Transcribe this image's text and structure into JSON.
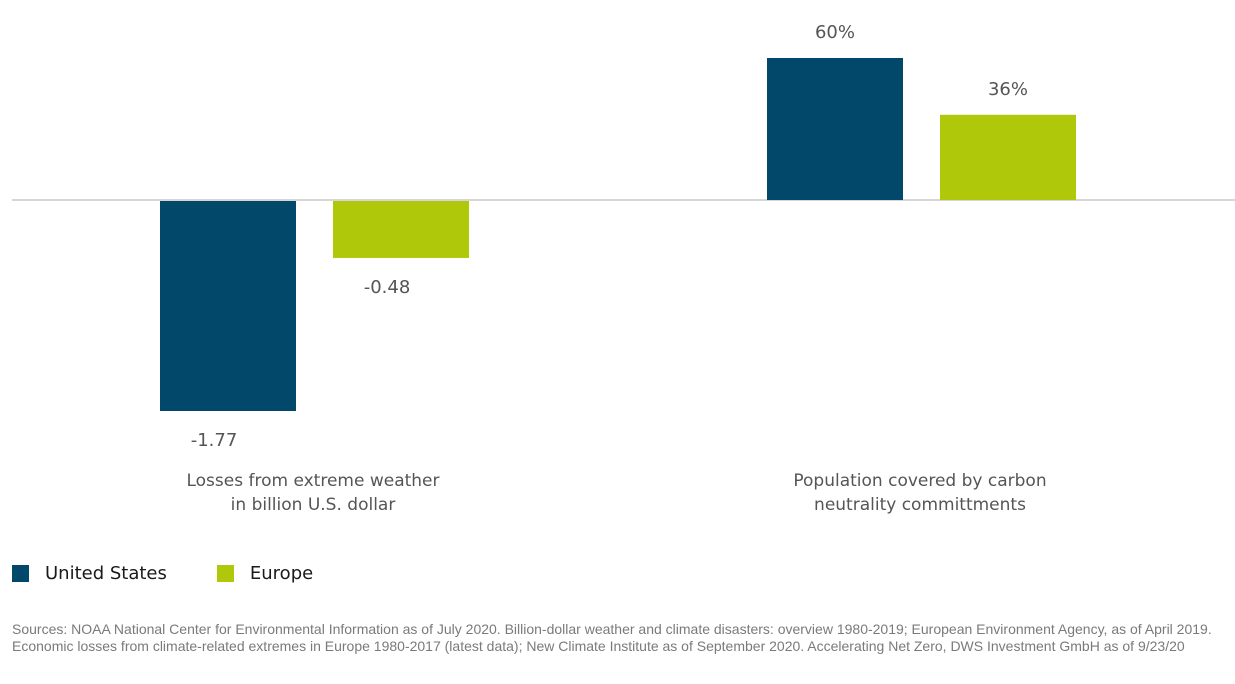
{
  "chart_data": {
    "type": "bar",
    "categories": [
      [
        "Losses from extreme weather",
        "in billion U.S. dollar"
      ],
      [
        "Population covered by carbon",
        "neutrality committments"
      ]
    ],
    "series": [
      {
        "name": "United States",
        "color": "#01486b",
        "values": [
          -1.77,
          0.6
        ],
        "labels": [
          "-1.77",
          "60%"
        ]
      },
      {
        "name": "Europe",
        "color": "#afc90a",
        "values": [
          -0.48,
          0.36
        ],
        "labels": [
          "-0.48",
          "36%"
        ]
      }
    ],
    "legend_position": "bottom-left",
    "zero_line": true,
    "grid": false
  },
  "legend": {
    "items": [
      {
        "label": "United States",
        "color": "#01486b"
      },
      {
        "label": "Europe",
        "color": "#afc90a"
      }
    ]
  },
  "footnote": "Sources: NOAA National Center for Environmental Information as of July 2020. Billion-dollar weather and climate disasters: overview 1980-2019; European Environment Agency, as of April 2019. Economic losses from climate-related extremes in Europe 1980-2017 (latest data); New Climate Institute as of September 2020. Accelerating Net Zero, DWS Investment GmbH as of 9/23/20"
}
